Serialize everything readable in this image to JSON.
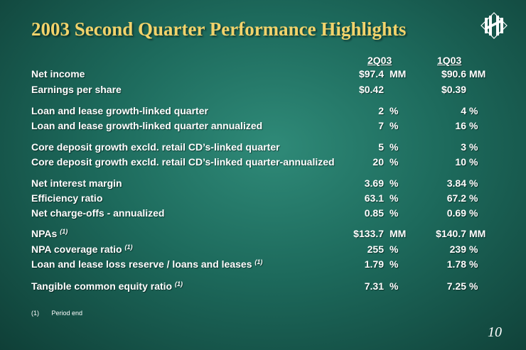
{
  "title": "2003 Second Quarter Performance Highlights",
  "logo_icon": "huntington-logo-icon",
  "columns": {
    "current": "2Q03",
    "prior": "1Q03"
  },
  "rows": [
    {
      "label": "Net income",
      "note": "",
      "v2": "$97.4",
      "u2": "MM",
      "v1": "$90.6",
      "u1": "MM"
    },
    {
      "label": "Earnings per share",
      "note": "",
      "v2": "$0.42",
      "u2": "",
      "v1": "$0.39",
      "u1": ""
    },
    {
      "label": "Loan and lease growth-linked quarter",
      "note": "",
      "v2": "2",
      "u2": "%",
      "v1": "4",
      "u1": "%"
    },
    {
      "label": "Loan and lease growth-linked quarter annualized",
      "note": "",
      "v2": "7",
      "u2": "%",
      "v1": "16",
      "u1": "%"
    },
    {
      "label": "Core deposit growth excld. retail CD’s-linked quarter",
      "note": "",
      "v2": "5",
      "u2": "%",
      "v1": "3",
      "u1": "%"
    },
    {
      "label": "Core deposit growth excld. retail CD’s-linked quarter-annualized",
      "note": "",
      "v2": "20",
      "u2": "%",
      "v1": "10",
      "u1": "%"
    },
    {
      "label": "Net interest margin",
      "note": "",
      "v2": "3.69",
      "u2": "%",
      "v1": "3.84",
      "u1": "%"
    },
    {
      "label": "Efficiency ratio",
      "note": "",
      "v2": "63.1",
      "u2": "%",
      "v1": "67.2",
      "u1": "%"
    },
    {
      "label": "Net charge-offs - annualized",
      "note": "",
      "v2": "0.85",
      "u2": "%",
      "v1": "0.69",
      "u1": "%"
    },
    {
      "label": "NPAs",
      "note": "(1)",
      "v2": "$133.7",
      "u2": "MM",
      "v1": "$140.7",
      "u1": "MM"
    },
    {
      "label": "NPA coverage ratio",
      "note": "(1)",
      "v2": "255",
      "u2": "%",
      "v1": "239",
      "u1": "%"
    },
    {
      "label": "Loan and lease loss reserve / loans and leases",
      "note": "(1)",
      "v2": "1.79",
      "u2": "%",
      "v1": "1.78",
      "u1": "%"
    },
    {
      "label": "Tangible common equity ratio",
      "note": "(1)",
      "v2": "7.31",
      "u2": "%",
      "v1": "7.25",
      "u1": "%"
    }
  ],
  "footnote": {
    "marker": "(1)",
    "text": "Period end"
  },
  "page_number": "10",
  "colors": {
    "title": "#f2d36b",
    "text": "#ffffff",
    "background": "#1d6a5c"
  }
}
